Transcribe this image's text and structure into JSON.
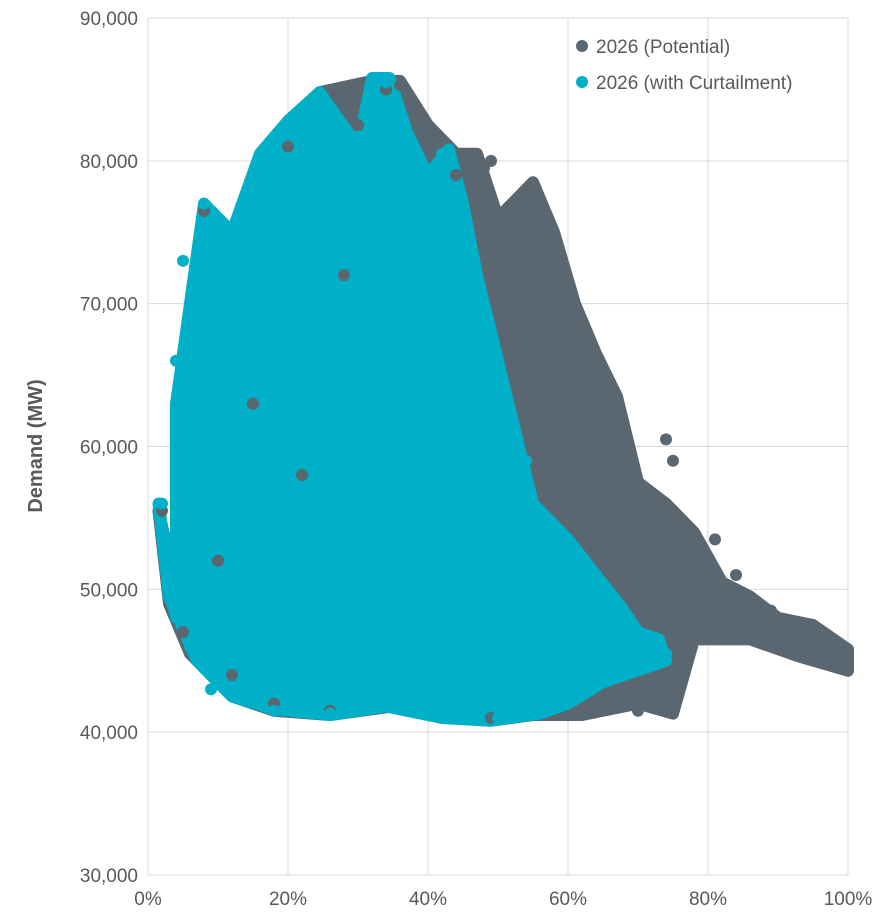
{
  "chart_data": {
    "type": "scatter",
    "title": "",
    "xlabel": "",
    "ylabel": "Demand (MW)",
    "xlim": [
      0,
      1
    ],
    "ylim": [
      30000,
      90000
    ],
    "x_ticks": [
      0,
      0.2,
      0.4,
      0.6,
      0.8,
      1.0
    ],
    "x_tick_labels": [
      "0%",
      "20%",
      "40%",
      "60%",
      "80%",
      "100%"
    ],
    "y_ticks": [
      30000,
      40000,
      50000,
      60000,
      70000,
      80000,
      90000
    ],
    "y_tick_labels": [
      "30,000",
      "40,000",
      "50,000",
      "60,000",
      "70,000",
      "80,000",
      "90,000"
    ],
    "grid": "vertical and horizontal major gridlines",
    "legend_position": "top-right",
    "series": [
      {
        "name": "2026 (Potential)",
        "color": "#5a6670",
        "values": [
          {
            "x": 0.02,
            "y": 55500
          },
          {
            "x": 0.05,
            "y": 47000
          },
          {
            "x": 0.08,
            "y": 76500
          },
          {
            "x": 0.1,
            "y": 52000
          },
          {
            "x": 0.12,
            "y": 44000
          },
          {
            "x": 0.15,
            "y": 63000
          },
          {
            "x": 0.18,
            "y": 42000
          },
          {
            "x": 0.2,
            "y": 81000
          },
          {
            "x": 0.22,
            "y": 58000
          },
          {
            "x": 0.24,
            "y": 84500
          },
          {
            "x": 0.26,
            "y": 41500
          },
          {
            "x": 0.28,
            "y": 72000
          },
          {
            "x": 0.3,
            "y": 82500
          },
          {
            "x": 0.32,
            "y": 85500
          },
          {
            "x": 0.34,
            "y": 85000
          },
          {
            "x": 0.36,
            "y": 85300
          },
          {
            "x": 0.38,
            "y": 84000
          },
          {
            "x": 0.4,
            "y": 82000
          },
          {
            "x": 0.42,
            "y": 80500
          },
          {
            "x": 0.44,
            "y": 79000
          },
          {
            "x": 0.46,
            "y": 80500
          },
          {
            "x": 0.48,
            "y": 79500
          },
          {
            "x": 0.49,
            "y": 80000
          },
          {
            "x": 0.49,
            "y": 41000
          },
          {
            "x": 0.5,
            "y": 74000
          },
          {
            "x": 0.51,
            "y": 70000
          },
          {
            "x": 0.52,
            "y": 76500
          },
          {
            "x": 0.53,
            "y": 72000
          },
          {
            "x": 0.54,
            "y": 77000
          },
          {
            "x": 0.55,
            "y": 78000
          },
          {
            "x": 0.56,
            "y": 75000
          },
          {
            "x": 0.57,
            "y": 71500
          },
          {
            "x": 0.58,
            "y": 74500
          },
          {
            "x": 0.59,
            "y": 67000
          },
          {
            "x": 0.6,
            "y": 71000
          },
          {
            "x": 0.61,
            "y": 66000
          },
          {
            "x": 0.62,
            "y": 67500
          },
          {
            "x": 0.63,
            "y": 63000
          },
          {
            "x": 0.64,
            "y": 65500
          },
          {
            "x": 0.65,
            "y": 61500
          },
          {
            "x": 0.66,
            "y": 62500
          },
          {
            "x": 0.67,
            "y": 58000
          },
          {
            "x": 0.68,
            "y": 57000
          },
          {
            "x": 0.69,
            "y": 55500
          },
          {
            "x": 0.7,
            "y": 56500
          },
          {
            "x": 0.71,
            "y": 54000
          },
          {
            "x": 0.72,
            "y": 55000
          },
          {
            "x": 0.73,
            "y": 52500
          },
          {
            "x": 0.74,
            "y": 60500
          },
          {
            "x": 0.75,
            "y": 59000
          },
          {
            "x": 0.76,
            "y": 53500
          },
          {
            "x": 0.77,
            "y": 51000
          },
          {
            "x": 0.78,
            "y": 49500
          },
          {
            "x": 0.79,
            "y": 50500
          },
          {
            "x": 0.8,
            "y": 48500
          },
          {
            "x": 0.81,
            "y": 53500
          },
          {
            "x": 0.82,
            "y": 49000
          },
          {
            "x": 0.83,
            "y": 47500
          },
          {
            "x": 0.84,
            "y": 51000
          },
          {
            "x": 0.85,
            "y": 48000
          },
          {
            "x": 0.86,
            "y": 49000
          },
          {
            "x": 0.87,
            "y": 47000
          },
          {
            "x": 0.88,
            "y": 47500
          },
          {
            "x": 0.89,
            "y": 48500
          },
          {
            "x": 0.9,
            "y": 47000
          },
          {
            "x": 0.91,
            "y": 47500
          },
          {
            "x": 0.92,
            "y": 46500
          },
          {
            "x": 0.93,
            "y": 47500
          },
          {
            "x": 0.94,
            "y": 46000
          },
          {
            "x": 0.95,
            "y": 47500
          },
          {
            "x": 0.96,
            "y": 45500
          },
          {
            "x": 0.97,
            "y": 46000
          },
          {
            "x": 0.98,
            "y": 45500
          },
          {
            "x": 0.99,
            "y": 45000
          },
          {
            "x": 1.0,
            "y": 45300
          },
          {
            "x": 1.0,
            "y": 44700
          },
          {
            "x": 0.7,
            "y": 41500
          },
          {
            "x": 0.74,
            "y": 41500
          },
          {
            "x": 0.66,
            "y": 42500
          },
          {
            "x": 0.62,
            "y": 41500
          }
        ]
      },
      {
        "name": "2026 (with Curtailment)",
        "color": "#00b0c8",
        "values": [
          {
            "x": 0.02,
            "y": 56000
          },
          {
            "x": 0.03,
            "y": 52000
          },
          {
            "x": 0.04,
            "y": 66000
          },
          {
            "x": 0.05,
            "y": 73000
          },
          {
            "x": 0.06,
            "y": 46000
          },
          {
            "x": 0.07,
            "y": 60000
          },
          {
            "x": 0.08,
            "y": 77000
          },
          {
            "x": 0.09,
            "y": 43000
          },
          {
            "x": 0.1,
            "y": 69000
          },
          {
            "x": 0.12,
            "y": 74000
          },
          {
            "x": 0.14,
            "y": 76500
          },
          {
            "x": 0.16,
            "y": 80000
          },
          {
            "x": 0.18,
            "y": 41500
          },
          {
            "x": 0.2,
            "y": 82500
          },
          {
            "x": 0.22,
            "y": 83000
          },
          {
            "x": 0.24,
            "y": 84500
          },
          {
            "x": 0.26,
            "y": 41300
          },
          {
            "x": 0.28,
            "y": 78000
          },
          {
            "x": 0.3,
            "y": 80000
          },
          {
            "x": 0.32,
            "y": 85500
          },
          {
            "x": 0.34,
            "y": 85500
          },
          {
            "x": 0.36,
            "y": 82000
          },
          {
            "x": 0.38,
            "y": 79000
          },
          {
            "x": 0.4,
            "y": 76500
          },
          {
            "x": 0.42,
            "y": 80500
          },
          {
            "x": 0.44,
            "y": 77000
          },
          {
            "x": 0.46,
            "y": 72000
          },
          {
            "x": 0.48,
            "y": 68000
          },
          {
            "x": 0.5,
            "y": 41000
          },
          {
            "x": 0.52,
            "y": 62000
          },
          {
            "x": 0.54,
            "y": 59000
          },
          {
            "x": 0.56,
            "y": 41500
          },
          {
            "x": 0.58,
            "y": 54000
          },
          {
            "x": 0.6,
            "y": 53000
          },
          {
            "x": 0.62,
            "y": 52000
          },
          {
            "x": 0.64,
            "y": 50500
          },
          {
            "x": 0.66,
            "y": 49500
          },
          {
            "x": 0.68,
            "y": 47500
          },
          {
            "x": 0.7,
            "y": 46000
          },
          {
            "x": 0.72,
            "y": 45000
          },
          {
            "x": 0.74,
            "y": 45500
          }
        ]
      }
    ]
  }
}
